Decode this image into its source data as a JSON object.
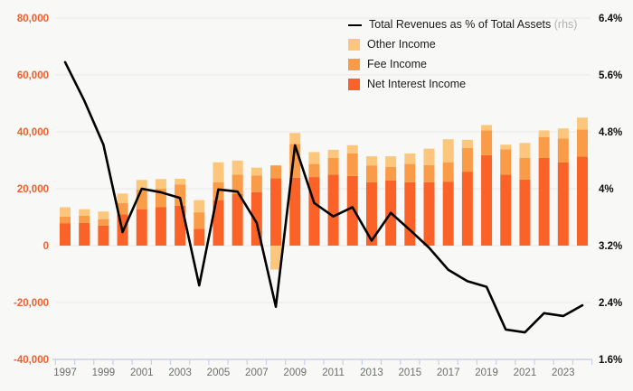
{
  "chart_data": {
    "type": "bar",
    "subtype": "stacked-bar-with-line-overlay",
    "title": "",
    "categories": [
      1997,
      1998,
      1999,
      2000,
      2001,
      2002,
      2003,
      2004,
      2005,
      2006,
      2007,
      2008,
      2009,
      2010,
      2011,
      2012,
      2013,
      2014,
      2015,
      2016,
      2017,
      2018,
      2019,
      2020,
      2021,
      2022,
      2023,
      2024
    ],
    "series": [
      {
        "name": "Net Interest Income",
        "type": "bar",
        "stack": "income",
        "color": "#fb6227",
        "values": [
          7900,
          8000,
          7000,
          11000,
          12800,
          13500,
          14000,
          5900,
          16000,
          18100,
          18800,
          23700,
          23900,
          24100,
          25000,
          24500,
          22300,
          22900,
          22300,
          22300,
          22500,
          26000,
          31800,
          25000,
          23200,
          30800,
          29200,
          31300
        ]
      },
      {
        "name": "Fee Income",
        "type": "bar",
        "stack": "income",
        "color": "#fa9b47",
        "values": [
          2300,
          2500,
          2300,
          4000,
          6900,
          6500,
          7500,
          5800,
          6300,
          6900,
          5900,
          4500,
          11800,
          4600,
          5800,
          7900,
          5900,
          4800,
          6400,
          6000,
          6700,
          8300,
          8700,
          8800,
          7600,
          7400,
          8500,
          9500
        ]
      },
      {
        "name": "Other Income",
        "type": "bar",
        "stack": "income",
        "color": "#fcc77c",
        "values": [
          3300,
          2300,
          2700,
          3300,
          3400,
          3400,
          2000,
          4300,
          7000,
          4900,
          2700,
          -8400,
          3900,
          4200,
          2900,
          2900,
          3200,
          3700,
          3700,
          5800,
          8200,
          2900,
          1900,
          1700,
          5300,
          2300,
          3500,
          4200
        ]
      },
      {
        "name": "Total Revenues as % of Total Assets",
        "type": "line",
        "axis": "rhs",
        "color": "#000000",
        "values": [
          5.78,
          5.24,
          4.62,
          3.39,
          4.0,
          3.95,
          3.87,
          2.64,
          3.99,
          3.96,
          3.52,
          2.34,
          4.61,
          3.8,
          3.61,
          3.74,
          3.27,
          3.66,
          3.42,
          3.17,
          2.86,
          2.7,
          2.62,
          2.02,
          1.98,
          2.25,
          2.21,
          2.36
        ]
      }
    ],
    "left_axis": {
      "range": [
        -40000,
        80000
      ],
      "tick_values": [
        80000,
        60000,
        40000,
        20000,
        0,
        -20000,
        -40000
      ],
      "tick_labels": [
        "80,000",
        "60,000",
        "40,000",
        "20,000",
        "0",
        "-20,000",
        "-40,000"
      ],
      "label_color": "#f05f2e"
    },
    "right_axis": {
      "range": [
        1.6,
        6.4
      ],
      "tick_values": [
        6.4,
        5.6,
        4.8,
        4.0,
        3.2,
        2.4,
        1.6
      ],
      "tick_labels": [
        "6.4%",
        "5.6%",
        "4.8%",
        "4%",
        "3.2%",
        "2.4%",
        "1.6%"
      ],
      "label_color": "#0d0d0d"
    },
    "x_axis": {
      "labeled_years": [
        "1997",
        "1999",
        "2001",
        "2003",
        "2005",
        "2007",
        "2009",
        "2011",
        "2013",
        "2015",
        "2017",
        "2019",
        "2021",
        "2023"
      ],
      "label_color": "#6e6e6e"
    },
    "grid": true,
    "legend_position": "top-right"
  },
  "legend": {
    "line": {
      "label": "Total Revenues as % of Total Assets",
      "suffix": "(rhs)"
    },
    "items": [
      {
        "label": "Other Income",
        "color": "#fcc77c"
      },
      {
        "label": "Fee Income",
        "color": "#fa9b47"
      },
      {
        "label": "Net Interest Income",
        "color": "#fb6227"
      }
    ]
  },
  "style": {
    "background": "#f8f8f6",
    "gridline_color": "#e9e9e6",
    "axis_line_color": "#c7d0e5",
    "line_stroke": "#000000"
  }
}
